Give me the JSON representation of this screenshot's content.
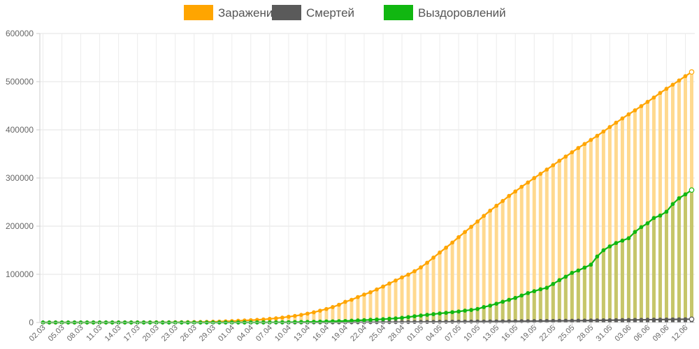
{
  "chart_data": {
    "type": "bar",
    "title": "",
    "xlabel": "",
    "ylabel": "",
    "ylim": [
      0,
      600000
    ],
    "yticks": [
      "0",
      "100000",
      "200000",
      "300000",
      "400000",
      "500000",
      "600000"
    ],
    "grid": true,
    "legend_position": "top",
    "categories": [
      "02.03",
      "03.03",
      "04.03",
      "05.03",
      "06.03",
      "07.03",
      "08.03",
      "09.03",
      "10.03",
      "11.03",
      "12.03",
      "13.03",
      "14.03",
      "15.03",
      "16.03",
      "17.03",
      "18.03",
      "19.03",
      "20.03",
      "21.03",
      "22.03",
      "23.03",
      "24.03",
      "25.03",
      "26.03",
      "27.03",
      "28.03",
      "29.03",
      "30.03",
      "31.03",
      "01.04",
      "02.04",
      "03.04",
      "04.04",
      "05.04",
      "06.04",
      "07.04",
      "08.04",
      "09.04",
      "10.04",
      "11.04",
      "12.04",
      "13.04",
      "14.04",
      "15.04",
      "16.04",
      "17.04",
      "18.04",
      "19.04",
      "20.04",
      "21.04",
      "22.04",
      "23.04",
      "24.04",
      "25.04",
      "26.04",
      "27.04",
      "28.04",
      "29.04",
      "30.04",
      "01.05",
      "02.05",
      "03.05",
      "04.05",
      "05.05",
      "06.05",
      "07.05",
      "08.05",
      "09.05",
      "10.05",
      "11.05",
      "12.05",
      "13.05",
      "14.05",
      "15.05",
      "16.05",
      "17.05",
      "18.05",
      "19.05",
      "20.05",
      "21.05",
      "22.05",
      "23.05",
      "24.05",
      "25.05",
      "26.05",
      "27.05",
      "28.05",
      "29.05",
      "30.05",
      "31.05",
      "01.06",
      "02.06",
      "03.06",
      "04.06",
      "05.06",
      "06.06",
      "07.06",
      "08.06",
      "09.06",
      "10.06",
      "11.06",
      "12.06",
      "13.06"
    ],
    "tick_labels": [
      "02.03",
      "05.03",
      "08.03",
      "11.03",
      "14.03",
      "17.03",
      "20.03",
      "23.03",
      "26.03",
      "29.03",
      "01.04",
      "04.04",
      "07.04",
      "10.04",
      "13.04",
      "16.04",
      "19.04",
      "22.04",
      "25.04",
      "28.04",
      "01.05",
      "04.05",
      "07.05",
      "10.05",
      "13.05",
      "16.05",
      "19.05",
      "22.05",
      "25.05",
      "28.05",
      "31.05",
      "03.06",
      "06.06",
      "09.06",
      "12.06"
    ],
    "series": [
      {
        "name": "Заражений",
        "color": "#ffa500",
        "fill": "#ffd98f",
        "values": [
          3,
          3,
          3,
          4,
          10,
          13,
          17,
          17,
          20,
          28,
          34,
          45,
          59,
          63,
          93,
          114,
          147,
          199,
          253,
          306,
          367,
          438,
          495,
          658,
          840,
          1036,
          1264,
          1534,
          1836,
          2337,
          2777,
          3548,
          4149,
          4731,
          5389,
          6343,
          7497,
          8672,
          10131,
          11917,
          13584,
          15770,
          18328,
          21102,
          24490,
          27938,
          32008,
          36793,
          42853,
          47121,
          52763,
          57999,
          62773,
          68622,
          74588,
          80949,
          87147,
          93558,
          99399,
          106498,
          114431,
          124054,
          134686,
          145268,
          155370,
          165929,
          177160,
          187859,
          198676,
          209688,
          221344,
          232243,
          242271,
          252245,
          262843,
          272043,
          281752,
          290678,
          299941,
          308705,
          317554,
          326448,
          335882,
          344481,
          353427,
          362342,
          370680,
          379051,
          387623,
          396575,
          405843,
          414878,
          423741,
          432277,
          440538,
          449256,
          458102,
          467073,
          476658,
          485253,
          493657,
          502436,
          511423,
          520129
        ]
      },
      {
        "name": "Смертей",
        "color": "#5a5a5a",
        "fill": "#5a5a5a",
        "values": [
          0,
          0,
          0,
          0,
          0,
          0,
          0,
          0,
          0,
          0,
          0,
          0,
          0,
          0,
          0,
          0,
          0,
          0,
          0,
          1,
          1,
          1,
          1,
          1,
          2,
          3,
          4,
          8,
          9,
          17,
          24,
          30,
          34,
          43,
          45,
          47,
          58,
          63,
          76,
          94,
          106,
          130,
          148,
          170,
          198,
          232,
          273,
          313,
          361,
          405,
          456,
          513,
          555,
          615,
          681,
          747,
          794,
          867,
          972,
          1073,
          1169,
          1222,
          1280,
          1356,
          1451,
          1537,
          1625,
          1723,
          1827,
          1915,
          2009,
          2116,
          2212,
          2305,
          2418,
          2537,
          2631,
          2722,
          2837,
          2972,
          3099,
          3249,
          3388,
          3541,
          3633,
          3807,
          3968,
          4142,
          4374,
          4555,
          4693,
          4855,
          5037,
          5215,
          5384,
          5528,
          5725,
          5859,
          5971,
          6142,
          6358,
          6532,
          6715,
          6829
        ]
      },
      {
        "name": "Выздоровлений",
        "color": "#11b711",
        "fill": "#c6c66a",
        "values": [
          0,
          0,
          0,
          0,
          0,
          0,
          0,
          0,
          0,
          0,
          0,
          0,
          0,
          0,
          0,
          0,
          0,
          0,
          0,
          1,
          5,
          8,
          12,
          17,
          23,
          28,
          30,
          38,
          50,
          64,
          79,
          97,
          114,
          121,
          190,
          260,
          305,
          350,
          494,
          580,
          794,
          1000,
          1200,
          1400,
          1700,
          2100,
          2400,
          2700,
          3100,
          3700,
          4300,
          4900,
          5500,
          6200,
          6800,
          7700,
          8500,
          9700,
          11200,
          12900,
          14400,
          15900,
          17300,
          18800,
          20000,
          21400,
          22800,
          24600,
          26000,
          28000,
          32000,
          35000,
          39000,
          43000,
          47000,
          51000,
          56000,
          61000,
          65000,
          69000,
          72000,
          80000,
          88000,
          95000,
          103000,
          108000,
          114000,
          120000,
          137000,
          150000,
          158000,
          165000,
          170000,
          175000,
          188000,
          198000,
          206000,
          217000,
          222000,
          230000,
          246000,
          258000,
          266000,
          275000
        ]
      }
    ]
  }
}
